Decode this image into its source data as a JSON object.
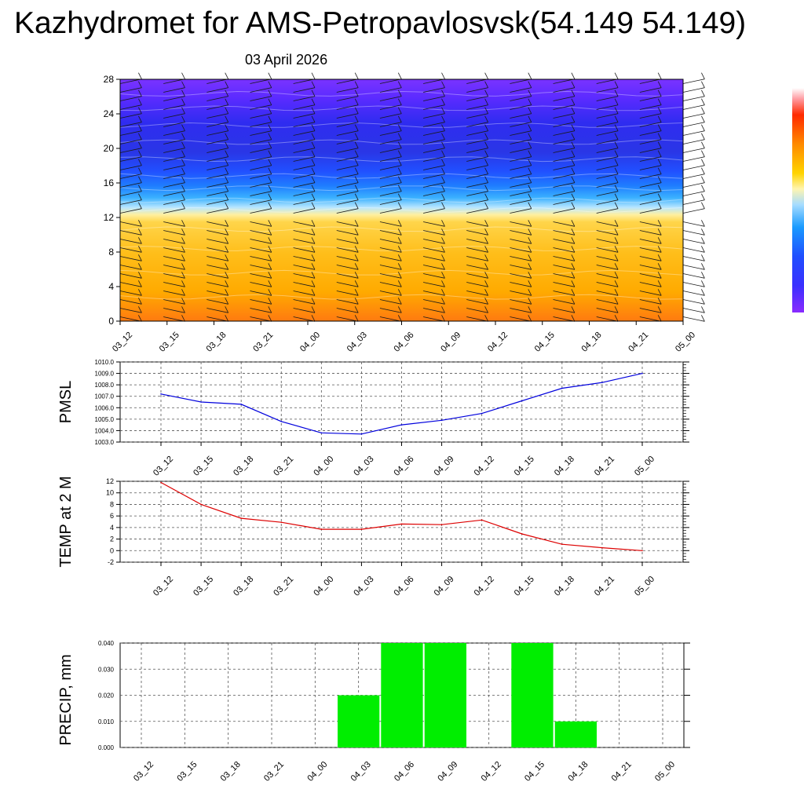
{
  "header": {
    "title": "Kazhydromet for AMS-Petropavlosvsk(54.149 54.149)",
    "subtitle": "03 April 2026"
  },
  "time_labels": [
    "03_12",
    "03_15",
    "03_18",
    "03_21",
    "04_00",
    "04_03",
    "04_06",
    "04_09",
    "04_12",
    "04_15",
    "04_18",
    "04_21",
    "05_00"
  ],
  "colors": {
    "pmsl_line": "#0000dd",
    "temp_line": "#dd0000",
    "precip_bar": "#00ee00"
  },
  "chart_data": [
    {
      "id": "profile",
      "type": "heatmap",
      "title": "",
      "xlabel": "",
      "ylabel": "",
      "x": [
        "03_12",
        "03_15",
        "03_18",
        "03_21",
        "04_00",
        "04_03",
        "04_06",
        "04_09",
        "04_12",
        "04_15",
        "04_18",
        "04_21",
        "05_00"
      ],
      "y_ticks": [
        0,
        4,
        8,
        12,
        16,
        20,
        24,
        28
      ],
      "ylim": [
        0,
        28
      ],
      "colorbar": [
        "#7f00ff",
        "#4b2cff",
        "#2a3cff",
        "#1f4fff",
        "#1a66ff",
        "#0f8cff",
        "#3fb6ff",
        "#a6dcff",
        "#fff5b0",
        "#ffe066",
        "#ffc000",
        "#ff9f00",
        "#ff6a00",
        "#ff2a00",
        "#ff5070",
        "#ff9aa0",
        "#ffffff"
      ],
      "wind_barbs": true
    },
    {
      "id": "pmsl",
      "type": "line",
      "ylabel": "PMSL",
      "x": [
        "03_12",
        "03_15",
        "03_18",
        "03_21",
        "04_00",
        "04_03",
        "04_06",
        "04_09",
        "04_12",
        "04_15",
        "04_18",
        "04_21",
        "05_00"
      ],
      "values": [
        1007.2,
        1006.5,
        1006.3,
        1004.8,
        1003.8,
        1003.7,
        1004.5,
        1004.9,
        1005.5,
        1006.6,
        1007.7,
        1008.2,
        1009.0
      ],
      "y_ticks": [
        "1003.0",
        "1004.0",
        "1005.0",
        "1006.0",
        "1007.0",
        "1008.0",
        "1009.0",
        "1010.0"
      ],
      "ylim": [
        1003.0,
        1010.0
      ]
    },
    {
      "id": "temp",
      "type": "line",
      "ylabel": "TEMP at 2 M",
      "x": [
        "03_12",
        "03_15",
        "03_18",
        "03_21",
        "04_00",
        "04_03",
        "04_06",
        "04_09",
        "04_12",
        "04_15",
        "04_18",
        "04_21",
        "05_00"
      ],
      "values": [
        11.8,
        8.0,
        5.6,
        4.9,
        3.7,
        3.7,
        4.6,
        4.5,
        5.3,
        2.9,
        1.1,
        0.5,
        0.0
      ],
      "y_ticks": [
        "-2",
        "0",
        "2",
        "4",
        "6",
        "8",
        "10",
        "12"
      ],
      "ylim": [
        -2,
        12
      ]
    },
    {
      "id": "precip",
      "type": "bar",
      "ylabel": "PRECIP, mm",
      "categories": [
        "03_12",
        "03_15",
        "03_18",
        "03_21",
        "04_00",
        "04_03",
        "04_06",
        "04_09",
        "04_12",
        "04_15",
        "04_18",
        "04_21",
        "05_00"
      ],
      "values": [
        0,
        0,
        0,
        0,
        0,
        0.02,
        0.04,
        0.04,
        0,
        0.04,
        0.01,
        0,
        0
      ],
      "y_ticks": [
        "0.000",
        "0.010",
        "0.020",
        "0.030",
        "0.040"
      ],
      "ylim": [
        0,
        0.04
      ]
    }
  ]
}
